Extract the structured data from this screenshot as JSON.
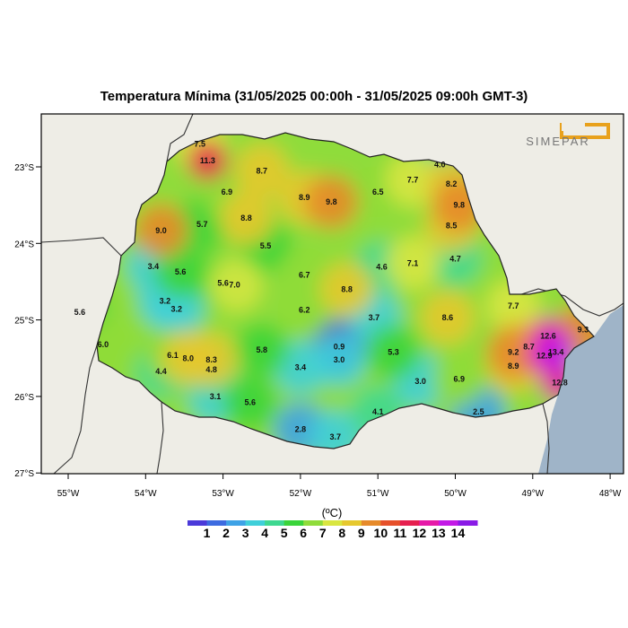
{
  "title": "Temperatura Mínima (31/05/2025 00:00h - 31/05/2025 09:00h GMT-3)",
  "logo_text": "SIMEPAR",
  "lat_ticks": [
    "23°S",
    "24°S",
    "25°S",
    "26°S",
    "27°S"
  ],
  "lon_ticks": [
    "55°W",
    "54°W",
    "53°W",
    "52°W",
    "51°W",
    "50°W",
    "49°W",
    "48°W"
  ],
  "colorbar": {
    "unit": "(ºC)",
    "labels": [
      "1",
      "2",
      "3",
      "4",
      "5",
      "6",
      "7",
      "8",
      "9",
      "10",
      "11",
      "12",
      "13",
      "14"
    ],
    "colors": [
      "#4b3ad9",
      "#3d6be0",
      "#3ea2e6",
      "#3fcfd9",
      "#3ed890",
      "#3ad43a",
      "#8fdc3a",
      "#d9e640",
      "#e6c82e",
      "#e68a2a",
      "#e6502a",
      "#e6204f",
      "#e61aa8",
      "#c31ae6",
      "#8a1ae6"
    ]
  },
  "stations": [
    {
      "v": "7.5",
      "lon": -53.3,
      "lat": -22.7
    },
    {
      "v": "11.3",
      "lon": -53.2,
      "lat": -22.92
    },
    {
      "v": "8.7",
      "lon": -52.5,
      "lat": -23.05
    },
    {
      "v": "6.9",
      "lon": -52.95,
      "lat": -23.33
    },
    {
      "v": "8.9",
      "lon": -51.95,
      "lat": -23.4
    },
    {
      "v": "9.8",
      "lon": -51.6,
      "lat": -23.46
    },
    {
      "v": "6.5",
      "lon": -51.0,
      "lat": -23.33
    },
    {
      "v": "7.7",
      "lon": -50.55,
      "lat": -23.17
    },
    {
      "v": "4.0",
      "lon": -50.2,
      "lat": -22.97
    },
    {
      "v": "8.2",
      "lon": -50.05,
      "lat": -23.22
    },
    {
      "v": "9.8",
      "lon": -49.95,
      "lat": -23.5
    },
    {
      "v": "8.5",
      "lon": -50.05,
      "lat": -23.77
    },
    {
      "v": "8.8",
      "lon": -52.7,
      "lat": -23.67
    },
    {
      "v": "5.7",
      "lon": -53.27,
      "lat": -23.75
    },
    {
      "v": "9.0",
      "lon": -53.8,
      "lat": -23.83
    },
    {
      "v": "5.5",
      "lon": -52.45,
      "lat": -24.03
    },
    {
      "v": "3.4",
      "lon": -53.9,
      "lat": -24.3
    },
    {
      "v": "5.6",
      "lon": -53.55,
      "lat": -24.37
    },
    {
      "v": "6.7",
      "lon": -51.95,
      "lat": -24.41
    },
    {
      "v": "4.6",
      "lon": -50.95,
      "lat": -24.31
    },
    {
      "v": "7.1",
      "lon": -50.55,
      "lat": -24.26
    },
    {
      "v": "4.7",
      "lon": -50.0,
      "lat": -24.2
    },
    {
      "v": "5.6",
      "lon": -53.0,
      "lat": -24.52
    },
    {
      "v": "7.0",
      "lon": -52.85,
      "lat": -24.54
    },
    {
      "v": "8.8",
      "lon": -51.4,
      "lat": -24.6
    },
    {
      "v": "3.2",
      "lon": -53.75,
      "lat": -24.75
    },
    {
      "v": "3.2",
      "lon": -53.6,
      "lat": -24.86
    },
    {
      "v": "6.2",
      "lon": -51.95,
      "lat": -24.87
    },
    {
      "v": "5.6",
      "lon": -54.85,
      "lat": -24.9
    },
    {
      "v": "3.7",
      "lon": -51.05,
      "lat": -24.97
    },
    {
      "v": "8.6",
      "lon": -50.1,
      "lat": -24.97
    },
    {
      "v": "7.7",
      "lon": -49.25,
      "lat": -24.82
    },
    {
      "v": "9.3",
      "lon": -48.35,
      "lat": -25.13
    },
    {
      "v": "12.6",
      "lon": -48.8,
      "lat": -25.21
    },
    {
      "v": "8.7",
      "lon": -49.05,
      "lat": -25.35
    },
    {
      "v": "9.2",
      "lon": -49.25,
      "lat": -25.42
    },
    {
      "v": "13.4",
      "lon": -48.7,
      "lat": -25.42
    },
    {
      "v": "12.9",
      "lon": -48.85,
      "lat": -25.47
    },
    {
      "v": "6.0",
      "lon": -54.55,
      "lat": -25.32
    },
    {
      "v": "0.9",
      "lon": -51.5,
      "lat": -25.35
    },
    {
      "v": "5.8",
      "lon": -52.5,
      "lat": -25.39
    },
    {
      "v": "5.3",
      "lon": -50.8,
      "lat": -25.42
    },
    {
      "v": "6.1",
      "lon": -53.65,
      "lat": -25.46
    },
    {
      "v": "8.0",
      "lon": -53.45,
      "lat": -25.5
    },
    {
      "v": "8.3",
      "lon": -53.15,
      "lat": -25.52
    },
    {
      "v": "3.0",
      "lon": -51.5,
      "lat": -25.52
    },
    {
      "v": "3.4",
      "lon": -52.0,
      "lat": -25.62
    },
    {
      "v": "8.9",
      "lon": -49.25,
      "lat": -25.6
    },
    {
      "v": "4.4",
      "lon": -53.8,
      "lat": -25.67
    },
    {
      "v": "4.8",
      "lon": -53.15,
      "lat": -25.65
    },
    {
      "v": "6.9",
      "lon": -49.95,
      "lat": -25.77
    },
    {
      "v": "3.0",
      "lon": -50.45,
      "lat": -25.8
    },
    {
      "v": "12.8",
      "lon": -48.65,
      "lat": -25.82
    },
    {
      "v": "3.1",
      "lon": -53.1,
      "lat": -26.0
    },
    {
      "v": "5.6",
      "lon": -52.65,
      "lat": -26.08
    },
    {
      "v": "4.1",
      "lon": -51.0,
      "lat": -26.2
    },
    {
      "v": "2.5",
      "lon": -49.7,
      "lat": -26.2
    },
    {
      "v": "2.8",
      "lon": -52.0,
      "lat": -26.43
    },
    {
      "v": "3.7",
      "lon": -51.55,
      "lat": -26.53
    }
  ]
}
